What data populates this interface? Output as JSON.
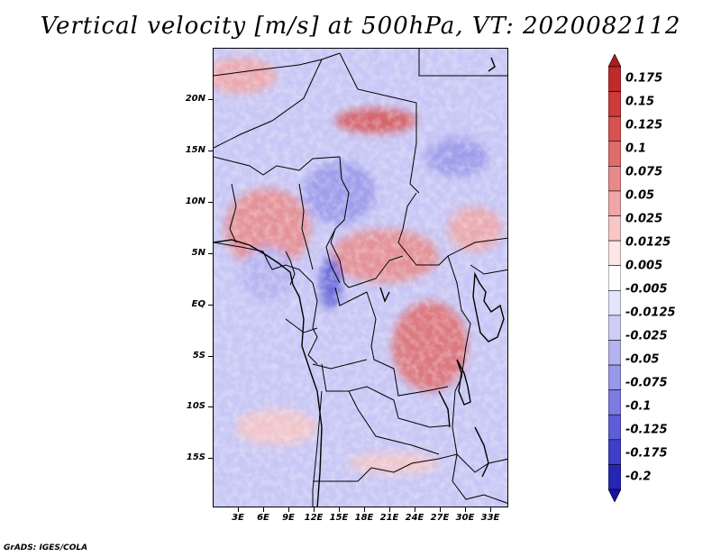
{
  "title": "Vertical velocity [m/s] at 500hPa, VT: 2020082112",
  "footer": "GrADS: IGES/COLA",
  "lat_labels": [
    "20N",
    "15N",
    "10N",
    "5N",
    "EQ",
    "5S",
    "10S",
    "15S"
  ],
  "lon_labels": [
    "3E",
    "6E",
    "9E",
    "12E",
    "15E",
    "18E",
    "21E",
    "24E",
    "27E",
    "30E",
    "33E"
  ],
  "colorbar": {
    "labels": [
      "0.175",
      "0.15",
      "0.125",
      "0.1",
      "0.075",
      "0.05",
      "0.025",
      "0.0125",
      "0.005",
      "-0.005",
      "-0.0125",
      "-0.025",
      "-0.05",
      "-0.075",
      "-0.1",
      "-0.125",
      "-0.175",
      "-0.2"
    ],
    "colors": [
      "#b01c1c",
      "#bf2a2a",
      "#cc3a3a",
      "#d85252",
      "#e06c6c",
      "#e88a8a",
      "#f0a6a6",
      "#f7c6c6",
      "#fce6e6",
      "#ffffff",
      "#e4e4fb",
      "#cdcdf6",
      "#b3b3f1",
      "#9898ea",
      "#7b7be2",
      "#5d5dd6",
      "#3e3ec8",
      "#2626b4",
      "#1414a0"
    ]
  }
}
